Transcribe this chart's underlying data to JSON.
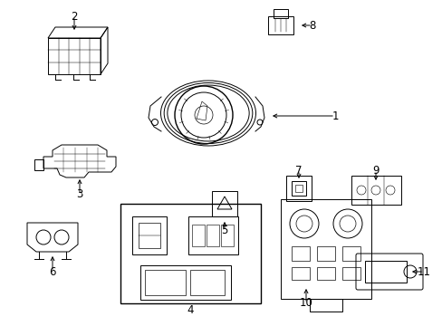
{
  "background_color": "#ffffff",
  "line_color": "#000000",
  "figsize": [
    4.89,
    3.6
  ],
  "dpi": 100,
  "label_fontsize": 8.5
}
